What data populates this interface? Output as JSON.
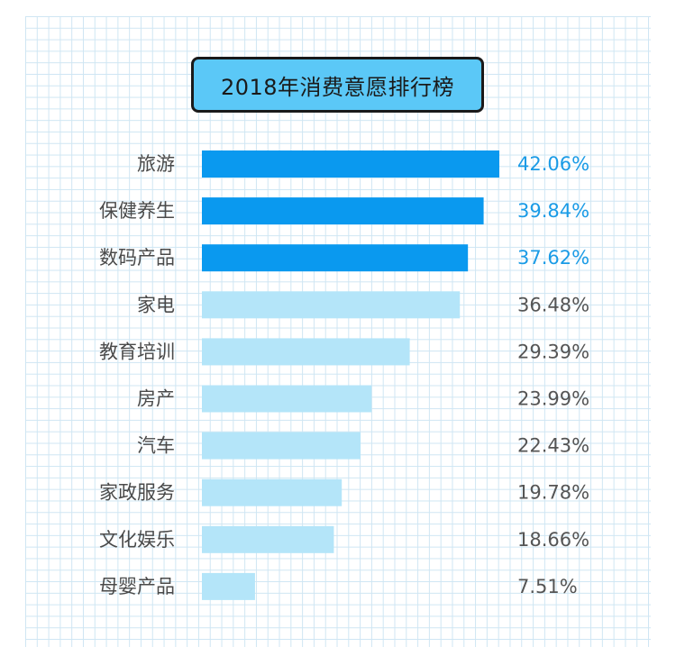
{
  "chart_data": {
    "type": "bar",
    "orientation": "horizontal",
    "title": "2018年消费意愿排行榜",
    "categories": [
      "旅游",
      "保健养生",
      "数码产品",
      "家电",
      "教育培训",
      "房产",
      "汽车",
      "家政服务",
      "文化娱乐",
      "母婴产品"
    ],
    "values": [
      42.06,
      39.84,
      37.62,
      36.48,
      29.39,
      23.99,
      22.43,
      19.78,
      18.66,
      7.51
    ],
    "value_labels": [
      "42.06%",
      "39.84%",
      "37.62%",
      "36.48%",
      "29.39%",
      "23.99%",
      "22.43%",
      "19.78%",
      "18.66%",
      "7.51%"
    ],
    "highlight_top_n": 3,
    "colors": {
      "bar_highlight": "#0a99ef",
      "bar_normal": "#b4e5f9",
      "label_highlight": "#1a9be6",
      "label_normal": "#555555"
    },
    "grid": true,
    "legend": "none"
  }
}
